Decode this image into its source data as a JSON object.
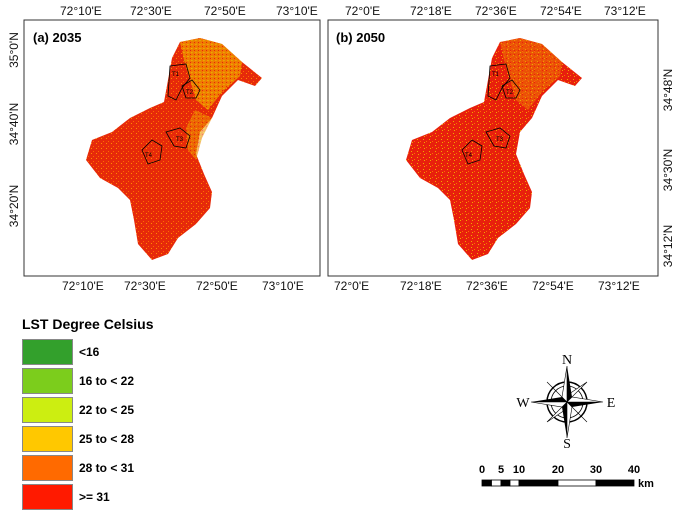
{
  "panels": [
    {
      "label": "(a) 2035",
      "top_ticks": [
        "72°10'E",
        "72°30'E",
        "72°50'E",
        "73°10'E"
      ],
      "bottom_ticks": [
        "72°10'E",
        "72°30'E",
        "72°50'E",
        "73°10'E"
      ],
      "left_ticks": [
        "35°0'N",
        "34°40'N",
        "34°20'N"
      ],
      "zones": [
        "T1",
        "T2",
        "T3",
        "T4"
      ]
    },
    {
      "label": "(b) 2050",
      "top_ticks": [
        "72°0'E",
        "72°18'E",
        "72°36'E",
        "72°54'E",
        "73°12'E"
      ],
      "bottom_ticks": [
        "72°0'E",
        "72°18'E",
        "72°36'E",
        "72°54'E",
        "73°12'E"
      ],
      "right_ticks": [
        "34°48'N",
        "34°30'N",
        "34°12'N"
      ],
      "zones": [
        "T1",
        "T2",
        "T3",
        "T4"
      ]
    }
  ],
  "legend": {
    "title": "LST Degree Celsius",
    "items": [
      {
        "label": "<16",
        "color": "#33a02c"
      },
      {
        "label": "16 to < 22",
        "color": "#7ccd1c"
      },
      {
        "label": "22 to < 25",
        "color": "#ccee11"
      },
      {
        "label": "25 to < 28",
        "color": "#ffc800"
      },
      {
        "label": "28 to < 31",
        "color": "#ff6a00"
      },
      {
        "label": ">= 31",
        "color": "#ff1a00"
      }
    ]
  },
  "compass": {
    "n": "N",
    "s": "S",
    "e": "E",
    "w": "W"
  },
  "scale_bar": {
    "ticks": [
      "0",
      "5",
      "10",
      "20",
      "30",
      "40"
    ],
    "unit": "km"
  },
  "colors": {
    "hot": "#e8200c",
    "warm": "#ff6a00",
    "mild": "#f2a800"
  }
}
